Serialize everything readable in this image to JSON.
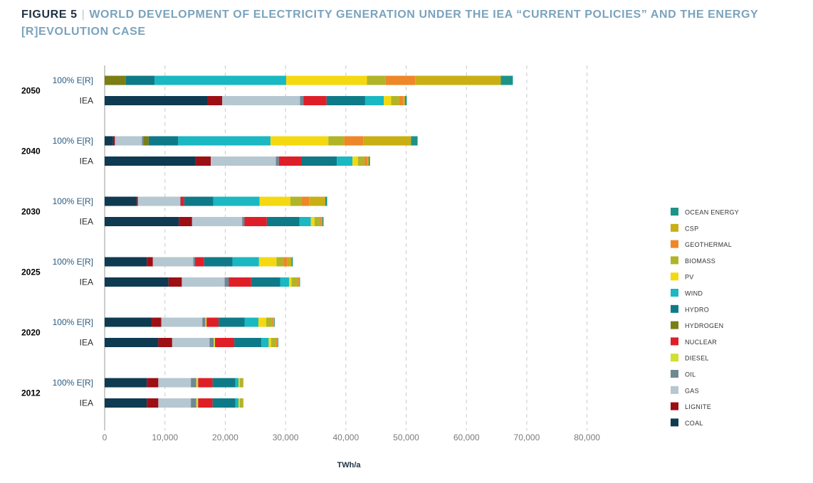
{
  "header": {
    "figure_label": "FIGURE 5",
    "separator": "|",
    "title": "WORLD DEVELOPMENT OF ELECTRICITY GENERATION UNDER THE IEA “CURRENT POLICIES” AND THE ENERGY [R]EVOLUTION CASE"
  },
  "chart_data": {
    "type": "bar",
    "orientation": "horizontal",
    "stacked": true,
    "xlabel": "TWh/a",
    "xlim": [
      0,
      80000
    ],
    "xticks": [
      "0",
      "10,000",
      "20,000",
      "30,000",
      "40,000",
      "50,000",
      "60,000",
      "70,000",
      "80,000"
    ],
    "grid": "vertical dashed",
    "legend_position": "right",
    "series": [
      {
        "name": "COAL",
        "color": "#0e3a52"
      },
      {
        "name": "LIGNITE",
        "color": "#9c0f14"
      },
      {
        "name": "GAS",
        "color": "#b5c7d1"
      },
      {
        "name": "OIL",
        "color": "#708794"
      },
      {
        "name": "DIESEL",
        "color": "#d3df2f"
      },
      {
        "name": "NUCLEAR",
        "color": "#df1f27"
      },
      {
        "name": "HYDROGEN",
        "color": "#7a7e13"
      },
      {
        "name": "HYDRO",
        "color": "#0e7a88"
      },
      {
        "name": "WIND",
        "color": "#19b8c2"
      },
      {
        "name": "PV",
        "color": "#f4d911"
      },
      {
        "name": "BIOMASS",
        "color": "#b0b527"
      },
      {
        "name": "GEOTHERMAL",
        "color": "#ee8728"
      },
      {
        "name": "CSP",
        "color": "#c9af14"
      },
      {
        "name": "OCEAN ENERGY",
        "color": "#1d9387"
      }
    ],
    "groups": [
      {
        "year": "2050",
        "bars": [
          {
            "case": "100% E[R]",
            "values": [
              0,
              0,
              0,
              0,
              0,
              0,
              3500,
              4800,
              21800,
              13400,
              3100,
              4900,
              14200,
              2000
            ]
          },
          {
            "case": "IEA",
            "values": [
              17000,
              2500,
              12900,
              600,
              0,
              3800,
              0,
              6400,
              3100,
              1200,
              1300,
              700,
              300,
              300
            ]
          }
        ]
      },
      {
        "year": "2040",
        "bars": [
          {
            "case": "100% E[R]",
            "values": [
              1400,
              300,
              4500,
              200,
              0,
              0,
              900,
              4900,
              15300,
              9600,
              2600,
              3200,
              7900,
              1100
            ]
          },
          {
            "case": "IEA",
            "values": [
              15100,
              2500,
              10800,
              500,
              0,
              3800,
              0,
              5800,
              2600,
              900,
              1100,
              500,
              200,
              200
            ]
          }
        ]
      },
      {
        "year": "2030",
        "bars": [
          {
            "case": "100% E[R]",
            "values": [
              5300,
              200,
              7000,
              100,
              0,
              600,
              0,
              4800,
              7700,
              5100,
              1900,
              1200,
              2700,
              300
            ]
          },
          {
            "case": "IEA",
            "values": [
              12300,
              2200,
              8300,
              400,
              0,
              3700,
              0,
              5400,
              1900,
              600,
              900,
              300,
              100,
              200
            ]
          }
        ]
      },
      {
        "year": "2025",
        "bars": [
          {
            "case": "100% E[R]",
            "values": [
              7000,
              1000,
              6700,
              300,
              0,
              1500,
              0,
              4700,
              4400,
              2900,
              1200,
              600,
              700,
              200
            ]
          },
          {
            "case": "IEA",
            "values": [
              10600,
              2200,
              7100,
              700,
              0,
              3700,
              0,
              4800,
              1500,
              400,
              900,
              300,
              100,
              100
            ]
          }
        ]
      },
      {
        "year": "2020",
        "bars": [
          {
            "case": "100% E[R]",
            "values": [
              7800,
              1600,
              6800,
              500,
              200,
              2000,
              0,
              4300,
              2300,
              1300,
              900,
              200,
              200,
              100
            ]
          },
          {
            "case": "IEA",
            "values": [
              8900,
              2300,
              6200,
              700,
              200,
              3200,
              0,
              4500,
              1200,
              400,
              800,
              200,
              100,
              100
            ]
          }
        ]
      },
      {
        "year": "2012",
        "bars": [
          {
            "case": "100% E[R]",
            "values": [
              7000,
              1900,
              5400,
              900,
              300,
              2400,
              0,
              3800,
              500,
              200,
              500,
              100,
              0,
              0
            ]
          },
          {
            "case": "IEA",
            "values": [
              7000,
              1900,
              5400,
              900,
              300,
              2400,
              0,
              3800,
              500,
              200,
              500,
              100,
              0,
              0
            ]
          }
        ]
      }
    ],
    "legend_order": [
      "OCEAN ENERGY",
      "CSP",
      "GEOTHERMAL",
      "BIOMASS",
      "PV",
      "WIND",
      "HYDRO",
      "HYDROGEN",
      "NUCLEAR",
      "DIESEL",
      "OIL",
      "GAS",
      "LIGNITE",
      "COAL"
    ]
  }
}
